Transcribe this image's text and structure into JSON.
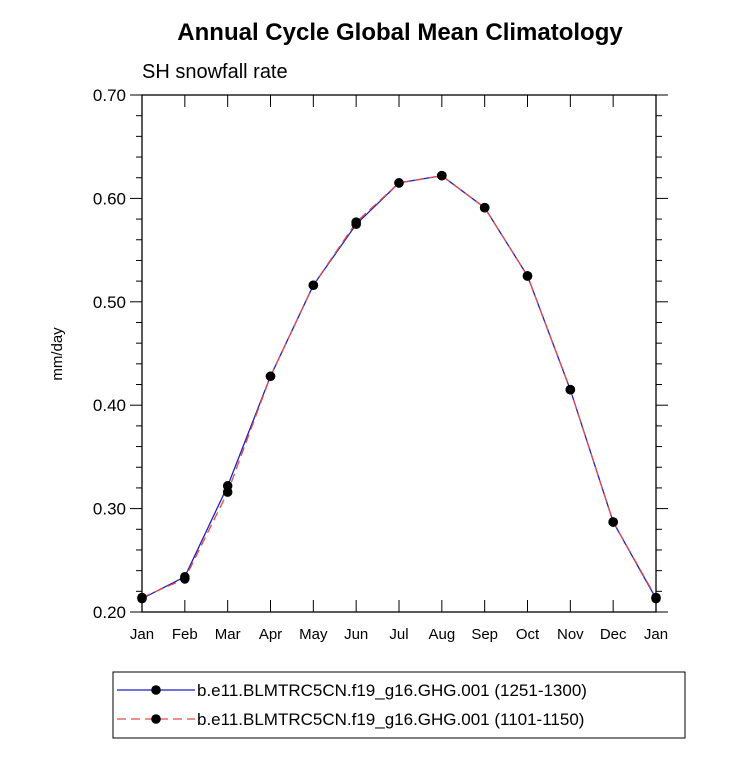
{
  "chart_data": {
    "type": "line",
    "title": "Annual Cycle Global Mean Climatology",
    "subtitle": "SH snowfall rate",
    "ylabel": "mm/day",
    "xlabel": "",
    "categories": [
      "Jan",
      "Feb",
      "Mar",
      "Apr",
      "May",
      "Jun",
      "Jul",
      "Aug",
      "Sep",
      "Oct",
      "Nov",
      "Dec",
      "Jan"
    ],
    "ylim": [
      0.2,
      0.7
    ],
    "yticks": [
      0.2,
      0.3,
      0.4,
      0.5,
      0.6,
      0.7
    ],
    "ytick_labels": [
      "0.20",
      "0.30",
      "0.40",
      "0.50",
      "0.60",
      "0.70"
    ],
    "grid": false,
    "legend_position": "bottom",
    "series": [
      {
        "name": "b.e11.BLMTRC5CN.f19_g16.GHG.001 (1251-1300)",
        "color": "#1f1fc8",
        "style": "solid",
        "values": [
          0.213,
          0.234,
          0.322,
          0.428,
          0.516,
          0.575,
          0.615,
          0.622,
          0.591,
          0.525,
          0.415,
          0.287,
          0.213
        ]
      },
      {
        "name": "b.e11.BLMTRC5CN.f19_g16.GHG.001 (1101-1150)",
        "color": "#e84a4a",
        "style": "dashed",
        "values": [
          0.214,
          0.232,
          0.316,
          0.428,
          0.516,
          0.577,
          0.615,
          0.622,
          0.591,
          0.525,
          0.415,
          0.287,
          0.214
        ]
      }
    ]
  }
}
